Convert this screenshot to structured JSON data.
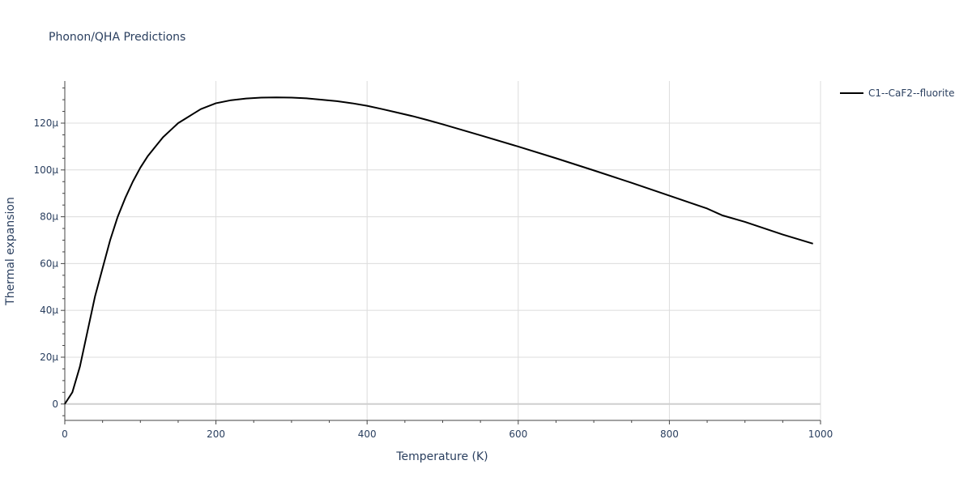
{
  "chart_data": {
    "type": "line",
    "title": "Phonon/QHA Predictions",
    "xlabel": "Temperature (K)",
    "ylabel": "Thermal expansion",
    "xlim": [
      0,
      1000
    ],
    "ylim": [
      -7,
      138
    ],
    "x_ticks": [
      0,
      200,
      400,
      600,
      800,
      1000
    ],
    "x_tick_labels": [
      "0",
      "200",
      "400",
      "600",
      "800",
      "1000"
    ],
    "y_ticks": [
      0,
      20,
      40,
      60,
      80,
      100,
      120
    ],
    "y_tick_labels": [
      "0",
      "20µ",
      "40µ",
      "60µ",
      "80µ",
      "100µ",
      "120µ"
    ],
    "y_unit": "µ (×1e-6)",
    "grid": true,
    "legend_position": "top-right",
    "series": [
      {
        "name": "C1--CaF2--fluorite",
        "color": "#000000",
        "x": [
          0,
          10,
          20,
          30,
          40,
          50,
          60,
          70,
          80,
          90,
          100,
          110,
          120,
          130,
          140,
          150,
          160,
          170,
          180,
          200,
          220,
          240,
          260,
          280,
          300,
          320,
          340,
          360,
          380,
          400,
          420,
          440,
          460,
          480,
          500,
          550,
          600,
          650,
          700,
          750,
          800,
          850,
          870,
          900,
          950,
          990
        ],
        "y": [
          0,
          5,
          16,
          31,
          46,
          58,
          70,
          80,
          88,
          95,
          101,
          106,
          110,
          114,
          117,
          120,
          122,
          124,
          126,
          128.5,
          129.8,
          130.5,
          130.9,
          131.0,
          130.9,
          130.6,
          130.0,
          129.4,
          128.5,
          127.4,
          126.0,
          124.5,
          123.0,
          121.3,
          119.5,
          114.8,
          110.0,
          105.0,
          99.8,
          94.5,
          89.0,
          83.5,
          80.6,
          77.8,
          72.4,
          68.5
        ]
      }
    ]
  }
}
